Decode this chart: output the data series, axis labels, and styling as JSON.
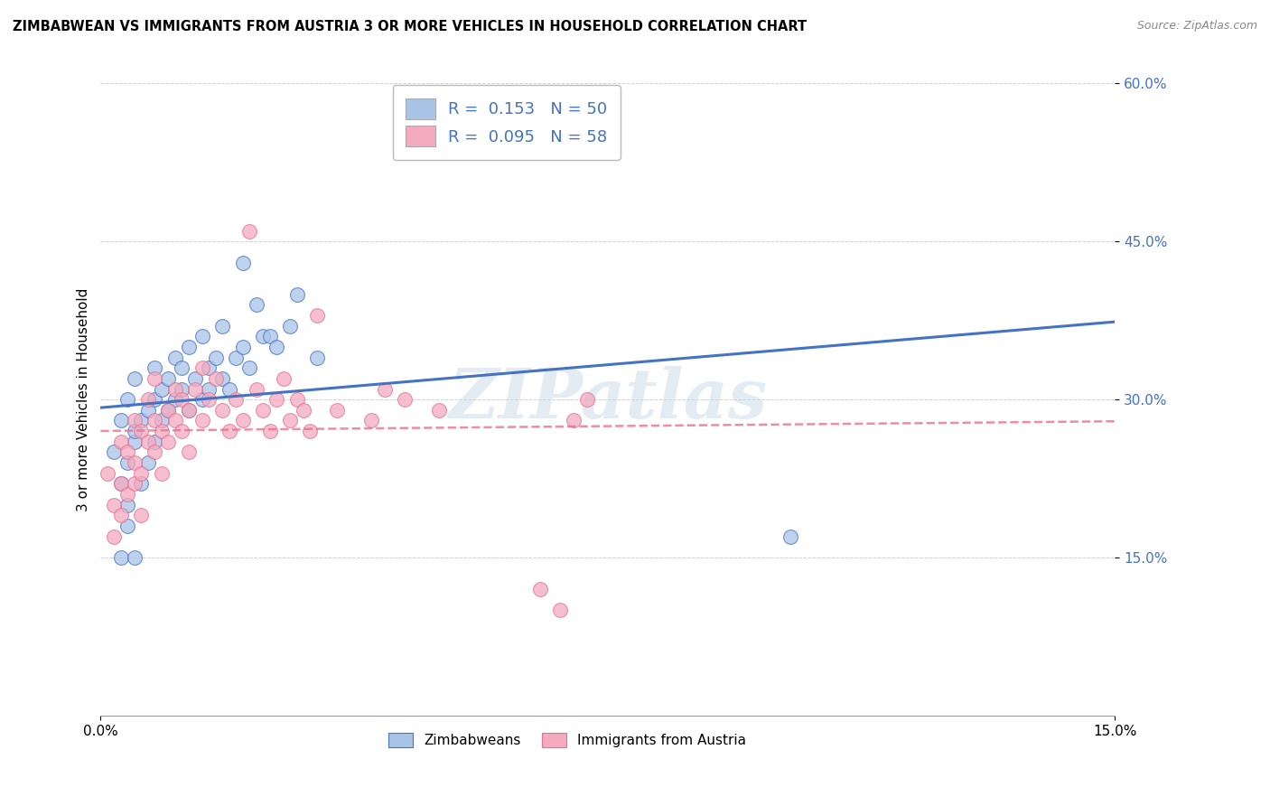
{
  "title": "ZIMBABWEAN VS IMMIGRANTS FROM AUSTRIA 3 OR MORE VEHICLES IN HOUSEHOLD CORRELATION CHART",
  "source": "Source: ZipAtlas.com",
  "ylabel_label": "3 or more Vehicles in Household",
  "legend_label1": "Zimbabweans",
  "legend_label2": "Immigrants from Austria",
  "r1": 0.153,
  "n1": 50,
  "r2": 0.095,
  "n2": 58,
  "color1": "#aac4e8",
  "color2": "#f4aabf",
  "line_color1": "#4472c4",
  "line_color2": "#e87090",
  "xmin": 0.0,
  "xmax": 15.0,
  "ymin": 0.0,
  "ymax": 60.0,
  "zimbabwean_x": [
    0.2,
    0.3,
    0.3,
    0.3,
    0.4,
    0.4,
    0.4,
    0.4,
    0.5,
    0.5,
    0.5,
    0.5,
    0.6,
    0.6,
    0.7,
    0.7,
    0.8,
    0.8,
    0.8,
    0.9,
    0.9,
    1.0,
    1.0,
    1.1,
    1.1,
    1.2,
    1.2,
    1.3,
    1.3,
    1.4,
    1.5,
    1.5,
    1.6,
    1.6,
    1.7,
    1.8,
    1.8,
    1.9,
    2.0,
    2.1,
    2.1,
    2.2,
    2.3,
    2.4,
    2.5,
    2.6,
    2.8,
    2.9,
    3.2,
    10.2
  ],
  "zimbabwean_y": [
    25.0,
    15.0,
    22.0,
    28.0,
    20.0,
    24.0,
    30.0,
    18.0,
    26.0,
    32.0,
    27.0,
    15.0,
    28.0,
    22.0,
    29.0,
    24.0,
    30.0,
    26.0,
    33.0,
    28.0,
    31.0,
    29.0,
    32.0,
    30.0,
    34.0,
    31.0,
    33.0,
    29.0,
    35.0,
    32.0,
    30.0,
    36.0,
    33.0,
    31.0,
    34.0,
    32.0,
    37.0,
    31.0,
    34.0,
    35.0,
    43.0,
    33.0,
    39.0,
    36.0,
    36.0,
    35.0,
    37.0,
    40.0,
    34.0,
    17.0
  ],
  "austria_x": [
    0.1,
    0.2,
    0.2,
    0.3,
    0.3,
    0.3,
    0.4,
    0.4,
    0.5,
    0.5,
    0.5,
    0.6,
    0.6,
    0.6,
    0.7,
    0.7,
    0.8,
    0.8,
    0.8,
    0.9,
    0.9,
    1.0,
    1.0,
    1.1,
    1.1,
    1.2,
    1.2,
    1.3,
    1.3,
    1.4,
    1.5,
    1.5,
    1.6,
    1.7,
    1.8,
    1.9,
    2.0,
    2.1,
    2.2,
    2.3,
    2.4,
    2.5,
    2.6,
    2.7,
    2.8,
    2.9,
    3.0,
    3.1,
    3.2,
    3.5,
    4.0,
    4.2,
    4.5,
    5.0,
    6.5,
    6.8,
    7.0,
    7.2
  ],
  "austria_y": [
    23.0,
    20.0,
    17.0,
    22.0,
    26.0,
    19.0,
    25.0,
    21.0,
    24.0,
    28.0,
    22.0,
    27.0,
    23.0,
    19.0,
    26.0,
    30.0,
    28.0,
    25.0,
    32.0,
    27.0,
    23.0,
    29.0,
    26.0,
    31.0,
    28.0,
    27.0,
    30.0,
    29.0,
    25.0,
    31.0,
    28.0,
    33.0,
    30.0,
    32.0,
    29.0,
    27.0,
    30.0,
    28.0,
    46.0,
    31.0,
    29.0,
    27.0,
    30.0,
    32.0,
    28.0,
    30.0,
    29.0,
    27.0,
    38.0,
    29.0,
    28.0,
    31.0,
    30.0,
    29.0,
    12.0,
    10.0,
    28.0,
    30.0
  ]
}
